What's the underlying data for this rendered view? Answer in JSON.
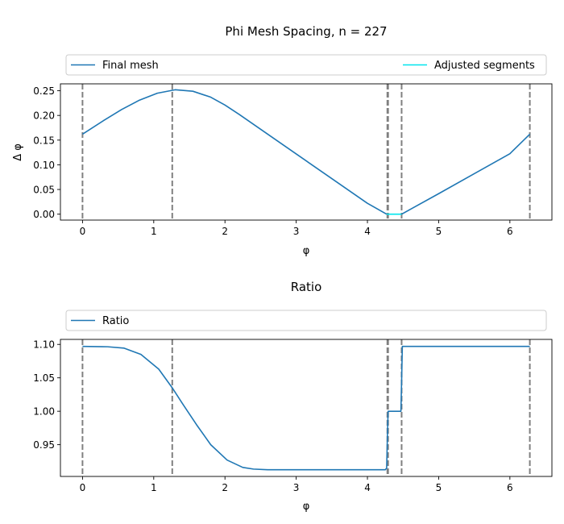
{
  "chart_data": [
    {
      "type": "line",
      "title": "Phi Mesh Spacing, n = 227",
      "xlabel": "φ",
      "ylabel": "Δ φ",
      "xlim": [
        -0.31,
        6.59
      ],
      "ylim": [
        -0.012,
        0.264
      ],
      "xticks": [
        0,
        1,
        2,
        3,
        4,
        5,
        6
      ],
      "yticks": [
        0.0,
        0.05,
        0.1,
        0.15,
        0.2,
        0.25
      ],
      "ytick_format": 2,
      "legend": "top, spanning",
      "grid": false,
      "vlines": [
        0,
        1.26,
        4.28,
        4.29,
        4.48,
        6.28
      ],
      "series": [
        {
          "name": "Final mesh",
          "color": "#1f77b4",
          "x": [
            0,
            0.3,
            0.55,
            0.8,
            1.05,
            1.3,
            1.55,
            1.8,
            2.0,
            2.2,
            2.5,
            3.0,
            3.5,
            4.0,
            4.27
          ],
          "y": [
            0.162,
            0.19,
            0.212,
            0.231,
            0.245,
            0.252,
            0.249,
            0.237,
            0.221,
            0.202,
            0.172,
            0.122,
            0.072,
            0.022,
            0.0
          ]
        },
        {
          "name": "Adjusted segments",
          "color": "#00e5ee",
          "x": [
            4.27,
            4.48
          ],
          "y": [
            0.0,
            0.0
          ]
        },
        {
          "name": "",
          "color": "#1f77b4",
          "x": [
            4.48,
            5.0,
            5.5,
            6.0,
            6.28
          ],
          "y": [
            0.0,
            0.0415,
            0.082,
            0.1225,
            0.162
          ]
        }
      ]
    },
    {
      "type": "line",
      "title": "Ratio",
      "xlabel": "φ",
      "ylabel": "",
      "xlim": [
        -0.31,
        6.59
      ],
      "ylim": [
        0.9025,
        1.1075
      ],
      "xticks": [
        0,
        1,
        2,
        3,
        4,
        5,
        6
      ],
      "yticks": [
        0.95,
        1.0,
        1.05,
        1.1
      ],
      "ytick_format": 2,
      "legend": "top, spanning",
      "grid": false,
      "vlines": [
        0,
        1.26,
        4.28,
        4.29,
        4.48,
        6.28
      ],
      "series": [
        {
          "name": "Ratio",
          "color": "#1f77b4",
          "x": [
            0,
            0.35,
            0.58,
            0.82,
            1.07,
            1.26,
            1.4,
            1.6,
            1.8,
            2.03,
            2.25,
            2.4,
            2.6,
            3.0,
            3.5,
            4.0,
            4.25,
            4.27,
            4.28,
            4.29,
            4.47,
            4.48,
            4.49,
            5.0,
            5.5,
            6.0,
            6.28
          ],
          "y": [
            1.097,
            1.0965,
            1.0945,
            1.085,
            1.063,
            1.035,
            1.012,
            0.98,
            0.95,
            0.927,
            0.916,
            0.9135,
            0.9125,
            0.9125,
            0.9125,
            0.9125,
            0.9125,
            0.915,
            0.96,
            1.0,
            1.0,
            1.045,
            1.097,
            1.097,
            1.097,
            1.097,
            1.097
          ]
        }
      ]
    }
  ]
}
